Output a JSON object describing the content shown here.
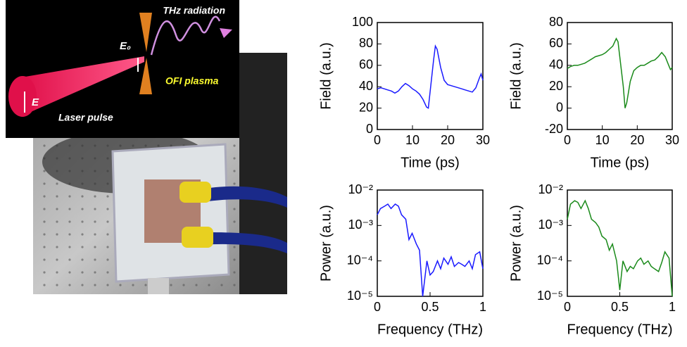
{
  "diagram": {
    "radiation": "THz radiation",
    "field": "E₀",
    "plasma": "OFI plasma",
    "polarization": "E",
    "pulse": "Laser pulse"
  },
  "chart_data": [
    {
      "type": "line",
      "xlabel": "Time (ps)",
      "ylabel": "Field (a.u.)",
      "color": "#1a1aff",
      "x": [
        0,
        1,
        2,
        3,
        4,
        5,
        6,
        7,
        8,
        9,
        10,
        11,
        12,
        13,
        14,
        14.5,
        15,
        16,
        16.5,
        17,
        18,
        19,
        20,
        21,
        22,
        23,
        24,
        25,
        26,
        27,
        28,
        29,
        29.5,
        30
      ],
      "values": [
        38,
        39,
        38,
        37,
        36,
        34,
        36,
        40,
        43,
        41,
        38,
        36,
        33,
        28,
        21,
        20,
        35,
        65,
        78,
        75,
        58,
        46,
        42,
        41,
        40,
        39,
        38,
        37,
        36,
        35,
        39,
        48,
        52,
        46
      ],
      "xlim": [
        0,
        30
      ],
      "xticks": [
        0,
        10,
        20,
        30
      ],
      "ylim": [
        0,
        100
      ],
      "yticks": [
        0,
        20,
        40,
        60,
        80,
        100
      ],
      "log": false
    },
    {
      "type": "line",
      "xlabel": "Time (ps)",
      "ylabel": "Field (a.u.)",
      "color": "#1a8a1a",
      "x": [
        0,
        1,
        2,
        3,
        4,
        5,
        6,
        7,
        8,
        9,
        10,
        11,
        12,
        13,
        14,
        14.5,
        15,
        16,
        16.5,
        17,
        18,
        19,
        20,
        21,
        22,
        23,
        24,
        25,
        26,
        27,
        28,
        29,
        29.5,
        30
      ],
      "values": [
        37,
        39,
        40,
        40,
        41,
        42,
        44,
        46,
        48,
        49,
        50,
        52,
        55,
        58,
        65,
        62,
        48,
        20,
        0,
        5,
        25,
        35,
        38,
        40,
        40,
        42,
        44,
        45,
        48,
        52,
        48,
        40,
        36,
        38
      ],
      "xlim": [
        0,
        30
      ],
      "xticks": [
        0,
        10,
        20,
        30
      ],
      "ylim": [
        -20,
        80
      ],
      "yticks": [
        -20,
        0,
        20,
        40,
        60,
        80
      ],
      "log": false
    },
    {
      "type": "line",
      "xlabel": "Frequency (THz)",
      "ylabel": "Power (a.u.)",
      "color": "#1a1aff",
      "x": [
        0,
        0.03,
        0.07,
        0.1,
        0.13,
        0.17,
        0.2,
        0.23,
        0.27,
        0.3,
        0.33,
        0.37,
        0.4,
        0.43,
        0.47,
        0.5,
        0.53,
        0.57,
        0.6,
        0.63,
        0.67,
        0.7,
        0.73,
        0.77,
        0.8,
        0.83,
        0.87,
        0.9,
        0.93,
        0.97,
        1
      ],
      "values": [
        0.002,
        0.003,
        0.0035,
        0.004,
        0.003,
        0.004,
        0.0035,
        0.002,
        0.0015,
        0.0004,
        0.0006,
        0.0003,
        0.0002,
        1e-05,
        0.0001,
        4e-05,
        5e-05,
        0.0001,
        6e-05,
        0.00012,
        8e-05,
        0.00013,
        7e-05,
        9e-05,
        8e-05,
        7e-05,
        0.0001,
        6e-05,
        0.00015,
        0.00018,
        6e-05
      ],
      "xlim": [
        0,
        1
      ],
      "xticks": [
        0,
        0.5,
        1
      ],
      "ylim": [
        1e-05,
        0.01
      ],
      "yticks": [
        {
          "value": 1e-05,
          "label": "10⁻⁵"
        },
        {
          "value": 0.0001,
          "label": "10⁻⁴"
        },
        {
          "value": 0.001,
          "label": "10⁻³"
        },
        {
          "value": 0.01,
          "label": "10⁻²"
        }
      ],
      "log": true
    },
    {
      "type": "line",
      "xlabel": "Frequency (THz)",
      "ylabel": "Power (a.u.)",
      "color": "#1a8a1a",
      "x": [
        0,
        0.03,
        0.07,
        0.1,
        0.13,
        0.17,
        0.2,
        0.23,
        0.27,
        0.3,
        0.33,
        0.37,
        0.4,
        0.43,
        0.47,
        0.5,
        0.53,
        0.57,
        0.6,
        0.63,
        0.67,
        0.7,
        0.73,
        0.77,
        0.8,
        0.83,
        0.87,
        0.9,
        0.93,
        0.97,
        1
      ],
      "values": [
        0.0015,
        0.004,
        0.005,
        0.0045,
        0.003,
        0.005,
        0.003,
        0.0015,
        0.0012,
        0.0009,
        0.0005,
        0.0004,
        0.0002,
        0.0003,
        0.0001,
        1.5e-05,
        0.0001,
        5e-05,
        7e-05,
        6e-05,
        0.0001,
        0.00012,
        8e-05,
        0.0001,
        7e-05,
        6e-05,
        5e-05,
        9e-05,
        0.00018,
        0.00012,
        1e-05
      ],
      "xlim": [
        0,
        1
      ],
      "xticks": [
        0,
        0.5,
        1
      ],
      "ylim": [
        1e-05,
        0.01
      ],
      "yticks": [
        {
          "value": 1e-05,
          "label": "10⁻⁵"
        },
        {
          "value": 0.0001,
          "label": "10⁻⁴"
        },
        {
          "value": 0.001,
          "label": "10⁻³"
        },
        {
          "value": 0.01,
          "label": "10⁻²"
        }
      ],
      "log": true
    }
  ]
}
